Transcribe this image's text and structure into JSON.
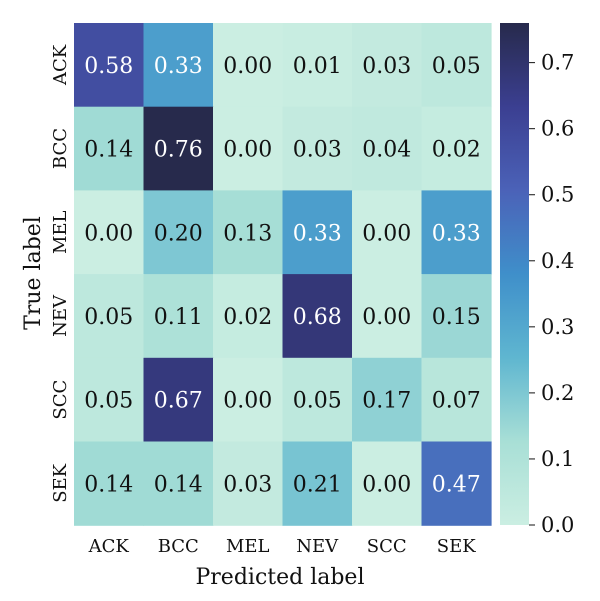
{
  "chart_data": {
    "type": "heatmap",
    "xlabel": "Predicted label",
    "ylabel": "True label",
    "x_categories": [
      "ACK",
      "BCC",
      "MEL",
      "NEV",
      "SCC",
      "SEK"
    ],
    "y_categories": [
      "ACK",
      "BCC",
      "MEL",
      "NEV",
      "SCC",
      "SEK"
    ],
    "values": [
      [
        0.58,
        0.33,
        0.0,
        0.01,
        0.03,
        0.05
      ],
      [
        0.14,
        0.76,
        0.0,
        0.03,
        0.04,
        0.02
      ],
      [
        0.0,
        0.2,
        0.13,
        0.33,
        0.0,
        0.33
      ],
      [
        0.05,
        0.11,
        0.02,
        0.68,
        0.0,
        0.15
      ],
      [
        0.05,
        0.67,
        0.0,
        0.05,
        0.17,
        0.07
      ],
      [
        0.14,
        0.14,
        0.03,
        0.21,
        0.0,
        0.47
      ]
    ],
    "colorbar": {
      "range": [
        0.0,
        0.76
      ],
      "ticks": [
        "0.0",
        "0.1",
        "0.2",
        "0.3",
        "0.4",
        "0.5",
        "0.6",
        "0.7"
      ],
      "colormap": [
        "#cbeee2",
        "#a8dfd6",
        "#5fb6d0",
        "#3f8fca",
        "#4b62b8",
        "#3b3f91",
        "#272a4c"
      ]
    },
    "grid": false,
    "light_text_threshold": 0.3
  }
}
